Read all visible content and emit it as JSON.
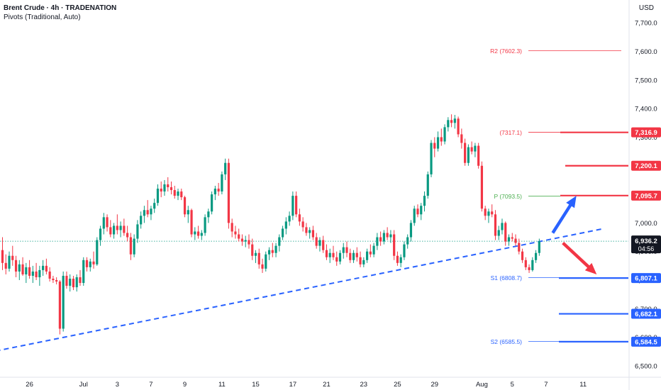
{
  "header": {
    "title": "Brent Crude · 4h · TRADENATION",
    "indicator": "Pivots (Traditional, Auto)",
    "currency": "USD"
  },
  "colors": {
    "bull": "#089981",
    "bear": "#f23645",
    "resistance": "#f23645",
    "support": "#2962ff",
    "pivot": "#4caf50",
    "trendline": "#2962ff",
    "current_price": "#131722"
  },
  "chart_data": {
    "type": "candlestick",
    "timeframe": "4h",
    "ylim": [
      6480,
      7780
    ],
    "y_ticks": [
      {
        "value": 6500,
        "label": "6,500.0"
      },
      {
        "value": 6600,
        "label": "6,600.0"
      },
      {
        "value": 6700,
        "label": "6,700.0"
      },
      {
        "value": 6800,
        "label": "6,800.0"
      },
      {
        "value": 6900,
        "label": "6,900.0"
      },
      {
        "value": 7000,
        "label": "7,000.0"
      },
      {
        "value": 7100,
        "label": "7,100.0"
      },
      {
        "value": 7200,
        "label": "7,200.0"
      },
      {
        "value": 7300,
        "label": "7,300.0"
      },
      {
        "value": 7400,
        "label": "7,400.0"
      },
      {
        "value": 7500,
        "label": "7,500.0"
      },
      {
        "value": 7600,
        "label": "7,600.0"
      },
      {
        "value": 7700,
        "label": "7,700.0"
      }
    ],
    "x_ticks": [
      {
        "bar": 8,
        "label": "26"
      },
      {
        "bar": 24,
        "label": "Jul"
      },
      {
        "bar": 34,
        "label": "3"
      },
      {
        "bar": 44,
        "label": "7"
      },
      {
        "bar": 54,
        "label": "9"
      },
      {
        "bar": 65,
        "label": "11"
      },
      {
        "bar": 75,
        "label": "15"
      },
      {
        "bar": 86,
        "label": "17"
      },
      {
        "bar": 96,
        "label": "21"
      },
      {
        "bar": 107,
        "label": "23"
      },
      {
        "bar": 117,
        "label": "25"
      },
      {
        "bar": 128,
        "label": "29"
      },
      {
        "bar": 142,
        "label": "Aug"
      },
      {
        "bar": 151,
        "label": "5"
      },
      {
        "bar": 161,
        "label": "7"
      },
      {
        "bar": 172,
        "label": "11"
      }
    ],
    "candles": [
      {
        "o": 6905,
        "h": 6950,
        "l": 6835,
        "c": 6860
      },
      {
        "o": 6860,
        "h": 6890,
        "l": 6820,
        "c": 6840
      },
      {
        "o": 6840,
        "h": 6900,
        "l": 6830,
        "c": 6885
      },
      {
        "o": 6885,
        "h": 6920,
        "l": 6850,
        "c": 6870
      },
      {
        "o": 6870,
        "h": 6885,
        "l": 6810,
        "c": 6830
      },
      {
        "o": 6830,
        "h": 6870,
        "l": 6800,
        "c": 6855
      },
      {
        "o": 6855,
        "h": 6880,
        "l": 6815,
        "c": 6820
      },
      {
        "o": 6820,
        "h": 6860,
        "l": 6790,
        "c": 6845
      },
      {
        "o": 6845,
        "h": 6870,
        "l": 6805,
        "c": 6815
      },
      {
        "o": 6815,
        "h": 6850,
        "l": 6790,
        "c": 6830
      },
      {
        "o": 6830,
        "h": 6860,
        "l": 6800,
        "c": 6810
      },
      {
        "o": 6810,
        "h": 6850,
        "l": 6780,
        "c": 6835
      },
      {
        "o": 6835,
        "h": 6870,
        "l": 6815,
        "c": 6850
      },
      {
        "o": 6850,
        "h": 6875,
        "l": 6820,
        "c": 6830
      },
      {
        "o": 6830,
        "h": 6845,
        "l": 6795,
        "c": 6805
      },
      {
        "o": 6805,
        "h": 6815,
        "l": 6790,
        "c": 6800
      },
      {
        "o": 6800,
        "h": 6810,
        "l": 6785,
        "c": 6795
      },
      {
        "o": 6795,
        "h": 6800,
        "l": 6610,
        "c": 6630
      },
      {
        "o": 6630,
        "h": 6830,
        "l": 6620,
        "c": 6815
      },
      {
        "o": 6815,
        "h": 6830,
        "l": 6770,
        "c": 6780
      },
      {
        "o": 6780,
        "h": 6820,
        "l": 6760,
        "c": 6805
      },
      {
        "o": 6805,
        "h": 6815,
        "l": 6765,
        "c": 6775
      },
      {
        "o": 6775,
        "h": 6820,
        "l": 6760,
        "c": 6810
      },
      {
        "o": 6810,
        "h": 6835,
        "l": 6780,
        "c": 6790
      },
      {
        "o": 6790,
        "h": 6880,
        "l": 6780,
        "c": 6870
      },
      {
        "o": 6870,
        "h": 6880,
        "l": 6830,
        "c": 6845
      },
      {
        "o": 6845,
        "h": 6875,
        "l": 6830,
        "c": 6865
      },
      {
        "o": 6865,
        "h": 6900,
        "l": 6840,
        "c": 6855
      },
      {
        "o": 6855,
        "h": 6950,
        "l": 6850,
        "c": 6940
      },
      {
        "o": 6940,
        "h": 6990,
        "l": 6920,
        "c": 6980
      },
      {
        "o": 6980,
        "h": 7035,
        "l": 6960,
        "c": 7020
      },
      {
        "o": 7020,
        "h": 7030,
        "l": 6970,
        "c": 6985
      },
      {
        "o": 6985,
        "h": 7010,
        "l": 6950,
        "c": 6960
      },
      {
        "o": 6960,
        "h": 7000,
        "l": 6945,
        "c": 6990
      },
      {
        "o": 6990,
        "h": 7030,
        "l": 6960,
        "c": 6975
      },
      {
        "o": 6975,
        "h": 7005,
        "l": 6950,
        "c": 6990
      },
      {
        "o": 6990,
        "h": 7015,
        "l": 6955,
        "c": 6965
      },
      {
        "o": 6965,
        "h": 6990,
        "l": 6935,
        "c": 6950
      },
      {
        "o": 6950,
        "h": 6965,
        "l": 6870,
        "c": 6890
      },
      {
        "o": 6890,
        "h": 6960,
        "l": 6880,
        "c": 6945
      },
      {
        "o": 6945,
        "h": 7010,
        "l": 6930,
        "c": 6995
      },
      {
        "o": 6995,
        "h": 7040,
        "l": 6980,
        "c": 7025
      },
      {
        "o": 7025,
        "h": 7060,
        "l": 7000,
        "c": 7045
      },
      {
        "o": 7045,
        "h": 7080,
        "l": 7020,
        "c": 7030
      },
      {
        "o": 7030,
        "h": 7060,
        "l": 7010,
        "c": 7050
      },
      {
        "o": 7050,
        "h": 7085,
        "l": 7035,
        "c": 7070
      },
      {
        "o": 7070,
        "h": 7135,
        "l": 7060,
        "c": 7120
      },
      {
        "o": 7120,
        "h": 7145,
        "l": 7090,
        "c": 7110
      },
      {
        "o": 7110,
        "h": 7150,
        "l": 7095,
        "c": 7135
      },
      {
        "o": 7135,
        "h": 7160,
        "l": 7110,
        "c": 7125
      },
      {
        "o": 7125,
        "h": 7145,
        "l": 7100,
        "c": 7115
      },
      {
        "o": 7115,
        "h": 7130,
        "l": 7085,
        "c": 7095
      },
      {
        "o": 7095,
        "h": 7120,
        "l": 7080,
        "c": 7110
      },
      {
        "o": 7110,
        "h": 7120,
        "l": 7080,
        "c": 7090
      },
      {
        "o": 7090,
        "h": 7095,
        "l": 7020,
        "c": 7030
      },
      {
        "o": 7030,
        "h": 7060,
        "l": 7000,
        "c": 7045
      },
      {
        "o": 7045,
        "h": 7050,
        "l": 6950,
        "c": 6960
      },
      {
        "o": 6960,
        "h": 6985,
        "l": 6940,
        "c": 6970
      },
      {
        "o": 6970,
        "h": 6990,
        "l": 6945,
        "c": 6955
      },
      {
        "o": 6955,
        "h": 6975,
        "l": 6940,
        "c": 6965
      },
      {
        "o": 6965,
        "h": 7030,
        "l": 6955,
        "c": 7020
      },
      {
        "o": 7020,
        "h": 7050,
        "l": 7000,
        "c": 7040
      },
      {
        "o": 7040,
        "h": 7110,
        "l": 7030,
        "c": 7100
      },
      {
        "o": 7100,
        "h": 7130,
        "l": 7080,
        "c": 7120
      },
      {
        "o": 7120,
        "h": 7140,
        "l": 7095,
        "c": 7110
      },
      {
        "o": 7110,
        "h": 7180,
        "l": 7100,
        "c": 7170
      },
      {
        "o": 7170,
        "h": 7225,
        "l": 7150,
        "c": 7210
      },
      {
        "o": 7210,
        "h": 7225,
        "l": 6980,
        "c": 7000
      },
      {
        "o": 7000,
        "h": 7015,
        "l": 6950,
        "c": 6970
      },
      {
        "o": 6970,
        "h": 6990,
        "l": 6945,
        "c": 6960
      },
      {
        "o": 6960,
        "h": 6980,
        "l": 6935,
        "c": 6945
      },
      {
        "o": 6945,
        "h": 6960,
        "l": 6920,
        "c": 6935
      },
      {
        "o": 6935,
        "h": 6955,
        "l": 6915,
        "c": 6940
      },
      {
        "o": 6940,
        "h": 6960,
        "l": 6910,
        "c": 6925
      },
      {
        "o": 6925,
        "h": 6945,
        "l": 6870,
        "c": 6885
      },
      {
        "o": 6885,
        "h": 6905,
        "l": 6860,
        "c": 6895
      },
      {
        "o": 6895,
        "h": 6910,
        "l": 6840,
        "c": 6855
      },
      {
        "o": 6855,
        "h": 6875,
        "l": 6825,
        "c": 6840
      },
      {
        "o": 6840,
        "h": 6900,
        "l": 6830,
        "c": 6890
      },
      {
        "o": 6890,
        "h": 6915,
        "l": 6870,
        "c": 6905
      },
      {
        "o": 6905,
        "h": 6930,
        "l": 6880,
        "c": 6895
      },
      {
        "o": 6895,
        "h": 6930,
        "l": 6880,
        "c": 6920
      },
      {
        "o": 6920,
        "h": 6960,
        "l": 6900,
        "c": 6950
      },
      {
        "o": 6950,
        "h": 6990,
        "l": 6940,
        "c": 6980
      },
      {
        "o": 6980,
        "h": 7020,
        "l": 6960,
        "c": 7005
      },
      {
        "o": 7005,
        "h": 7040,
        "l": 6990,
        "c": 7025
      },
      {
        "o": 7025,
        "h": 7110,
        "l": 7010,
        "c": 7095
      },
      {
        "o": 7095,
        "h": 7110,
        "l": 7020,
        "c": 7030
      },
      {
        "o": 7030,
        "h": 7050,
        "l": 6990,
        "c": 7005
      },
      {
        "o": 7005,
        "h": 7020,
        "l": 6970,
        "c": 6985
      },
      {
        "o": 6985,
        "h": 7000,
        "l": 6955,
        "c": 6965
      },
      {
        "o": 6965,
        "h": 6985,
        "l": 6945,
        "c": 6975
      },
      {
        "o": 6975,
        "h": 6990,
        "l": 6940,
        "c": 6950
      },
      {
        "o": 6950,
        "h": 6965,
        "l": 6910,
        "c": 6920
      },
      {
        "o": 6920,
        "h": 6950,
        "l": 6900,
        "c": 6940
      },
      {
        "o": 6940,
        "h": 6955,
        "l": 6895,
        "c": 6905
      },
      {
        "o": 6905,
        "h": 6925,
        "l": 6870,
        "c": 6880
      },
      {
        "o": 6880,
        "h": 6910,
        "l": 6860,
        "c": 6895
      },
      {
        "o": 6895,
        "h": 6920,
        "l": 6870,
        "c": 6880
      },
      {
        "o": 6880,
        "h": 6900,
        "l": 6850,
        "c": 6865
      },
      {
        "o": 6865,
        "h": 6905,
        "l": 6855,
        "c": 6895
      },
      {
        "o": 6895,
        "h": 6930,
        "l": 6875,
        "c": 6915
      },
      {
        "o": 6915,
        "h": 6935,
        "l": 6880,
        "c": 6895
      },
      {
        "o": 6895,
        "h": 6910,
        "l": 6860,
        "c": 6870
      },
      {
        "o": 6870,
        "h": 6905,
        "l": 6860,
        "c": 6895
      },
      {
        "o": 6895,
        "h": 6915,
        "l": 6865,
        "c": 6880
      },
      {
        "o": 6880,
        "h": 6900,
        "l": 6845,
        "c": 6855
      },
      {
        "o": 6855,
        "h": 6880,
        "l": 6845,
        "c": 6870
      },
      {
        "o": 6870,
        "h": 6910,
        "l": 6860,
        "c": 6900
      },
      {
        "o": 6900,
        "h": 6925,
        "l": 6880,
        "c": 6890
      },
      {
        "o": 6890,
        "h": 6930,
        "l": 6880,
        "c": 6920
      },
      {
        "o": 6920,
        "h": 6965,
        "l": 6905,
        "c": 6950
      },
      {
        "o": 6950,
        "h": 6970,
        "l": 6920,
        "c": 6935
      },
      {
        "o": 6935,
        "h": 6975,
        "l": 6925,
        "c": 6965
      },
      {
        "o": 6965,
        "h": 6985,
        "l": 6940,
        "c": 6950
      },
      {
        "o": 6950,
        "h": 6975,
        "l": 6930,
        "c": 6960
      },
      {
        "o": 6960,
        "h": 6975,
        "l": 6870,
        "c": 6885
      },
      {
        "o": 6885,
        "h": 6900,
        "l": 6850,
        "c": 6860
      },
      {
        "o": 6860,
        "h": 6890,
        "l": 6845,
        "c": 6880
      },
      {
        "o": 6880,
        "h": 6935,
        "l": 6870,
        "c": 6925
      },
      {
        "o": 6925,
        "h": 6960,
        "l": 6910,
        "c": 6950
      },
      {
        "o": 6950,
        "h": 7010,
        "l": 6935,
        "c": 7000
      },
      {
        "o": 7000,
        "h": 7060,
        "l": 6990,
        "c": 7050
      },
      {
        "o": 7050,
        "h": 7065,
        "l": 7020,
        "c": 7030
      },
      {
        "o": 7030,
        "h": 7070,
        "l": 7010,
        "c": 7060
      },
      {
        "o": 7060,
        "h": 7110,
        "l": 7040,
        "c": 7095
      },
      {
        "o": 7095,
        "h": 7180,
        "l": 7085,
        "c": 7170
      },
      {
        "o": 7170,
        "h": 7290,
        "l": 7160,
        "c": 7280
      },
      {
        "o": 7280,
        "h": 7300,
        "l": 7230,
        "c": 7260
      },
      {
        "o": 7260,
        "h": 7320,
        "l": 7250,
        "c": 7300
      },
      {
        "o": 7300,
        "h": 7330,
        "l": 7270,
        "c": 7285
      },
      {
        "o": 7285,
        "h": 7345,
        "l": 7275,
        "c": 7335
      },
      {
        "o": 7335,
        "h": 7370,
        "l": 7320,
        "c": 7360
      },
      {
        "o": 7360,
        "h": 7380,
        "l": 7335,
        "c": 7350
      },
      {
        "o": 7350,
        "h": 7378,
        "l": 7330,
        "c": 7365
      },
      {
        "o": 7365,
        "h": 7372,
        "l": 7300,
        "c": 7310
      },
      {
        "o": 7310,
        "h": 7330,
        "l": 7260,
        "c": 7280
      },
      {
        "o": 7280,
        "h": 7295,
        "l": 7200,
        "c": 7210
      },
      {
        "o": 7210,
        "h": 7275,
        "l": 7200,
        "c": 7265
      },
      {
        "o": 7265,
        "h": 7285,
        "l": 7240,
        "c": 7250
      },
      {
        "o": 7250,
        "h": 7280,
        "l": 7230,
        "c": 7270
      },
      {
        "o": 7270,
        "h": 7280,
        "l": 7190,
        "c": 7200
      },
      {
        "o": 7200,
        "h": 7215,
        "l": 7040,
        "c": 7050
      },
      {
        "o": 7050,
        "h": 7060,
        "l": 7010,
        "c": 7025
      },
      {
        "o": 7025,
        "h": 7050,
        "l": 7000,
        "c": 7040
      },
      {
        "o": 7040,
        "h": 7065,
        "l": 7020,
        "c": 7030
      },
      {
        "o": 7030,
        "h": 7045,
        "l": 6940,
        "c": 6955
      },
      {
        "o": 6955,
        "h": 6990,
        "l": 6940,
        "c": 6975
      },
      {
        "o": 6975,
        "h": 7015,
        "l": 6960,
        "c": 7000
      },
      {
        "o": 7000,
        "h": 7005,
        "l": 6920,
        "c": 6935
      },
      {
        "o": 6935,
        "h": 6960,
        "l": 6920,
        "c": 6950
      },
      {
        "o": 6950,
        "h": 6965,
        "l": 6935,
        "c": 6945
      },
      {
        "o": 6945,
        "h": 6960,
        "l": 6920,
        "c": 6930
      },
      {
        "o": 6930,
        "h": 6945,
        "l": 6890,
        "c": 6900
      },
      {
        "o": 6900,
        "h": 6910,
        "l": 6860,
        "c": 6870
      },
      {
        "o": 6870,
        "h": 6880,
        "l": 6835,
        "c": 6845
      },
      {
        "o": 6845,
        "h": 6855,
        "l": 6825,
        "c": 6835
      },
      {
        "o": 6835,
        "h": 6880,
        "l": 6830,
        "c": 6870
      },
      {
        "o": 6870,
        "h": 6905,
        "l": 6860,
        "c": 6895
      },
      {
        "o": 6895,
        "h": 6945,
        "l": 6885,
        "c": 6936
      }
    ],
    "pivots": [
      {
        "name": "R2",
        "tag": "R2 (7602.3)",
        "value": 7602.3,
        "axis_label": "",
        "role": "pivot-r"
      },
      {
        "name": "R1",
        "tag": "(7317.1)",
        "value": 7317.1,
        "axis_label": "7,316.9",
        "role": "resistance"
      },
      {
        "name": "P",
        "tag": "P (7093.5)",
        "value": 7093.5,
        "axis_label": "",
        "role": "pivot-p"
      },
      {
        "name": "S1",
        "tag": "S1 (6808.7)",
        "value": 6808.7,
        "axis_label": "",
        "role": "pivot-s"
      },
      {
        "name": "S2",
        "tag": "S2 (6585.5)",
        "value": 6585.5,
        "axis_label": "",
        "role": "pivot-s"
      }
    ],
    "levels": [
      {
        "value": 7316.9,
        "label": "7,316.9",
        "color": "#f23645"
      },
      {
        "value": 7200.1,
        "label": "7,200.1",
        "color": "#f23645"
      },
      {
        "value": 7095.7,
        "label": "7,095.7",
        "color": "#f23645"
      },
      {
        "value": 6807.1,
        "label": "6,807.1",
        "color": "#2962ff"
      },
      {
        "value": 6682.1,
        "label": "6,682.1",
        "color": "#2962ff"
      },
      {
        "value": 6584.5,
        "label": "6,584.5",
        "color": "#2962ff"
      }
    ],
    "current_price": {
      "value": 6936.2,
      "label": "6,936.2",
      "countdown": "04:56"
    },
    "trendline": {
      "start": {
        "bar": -7,
        "value": 6540
      },
      "end": {
        "bar": 178,
        "value": 6980
      }
    },
    "arrows": [
      {
        "direction": "up",
        "color": "#2962ff",
        "from": {
          "bar": 163,
          "value": 6965
        },
        "to": {
          "bar": 170,
          "value": 7095
        }
      },
      {
        "direction": "down",
        "color": "#f23645",
        "from": {
          "bar": 166,
          "value": 6930
        },
        "to": {
          "bar": 176,
          "value": 6820
        }
      }
    ]
  }
}
